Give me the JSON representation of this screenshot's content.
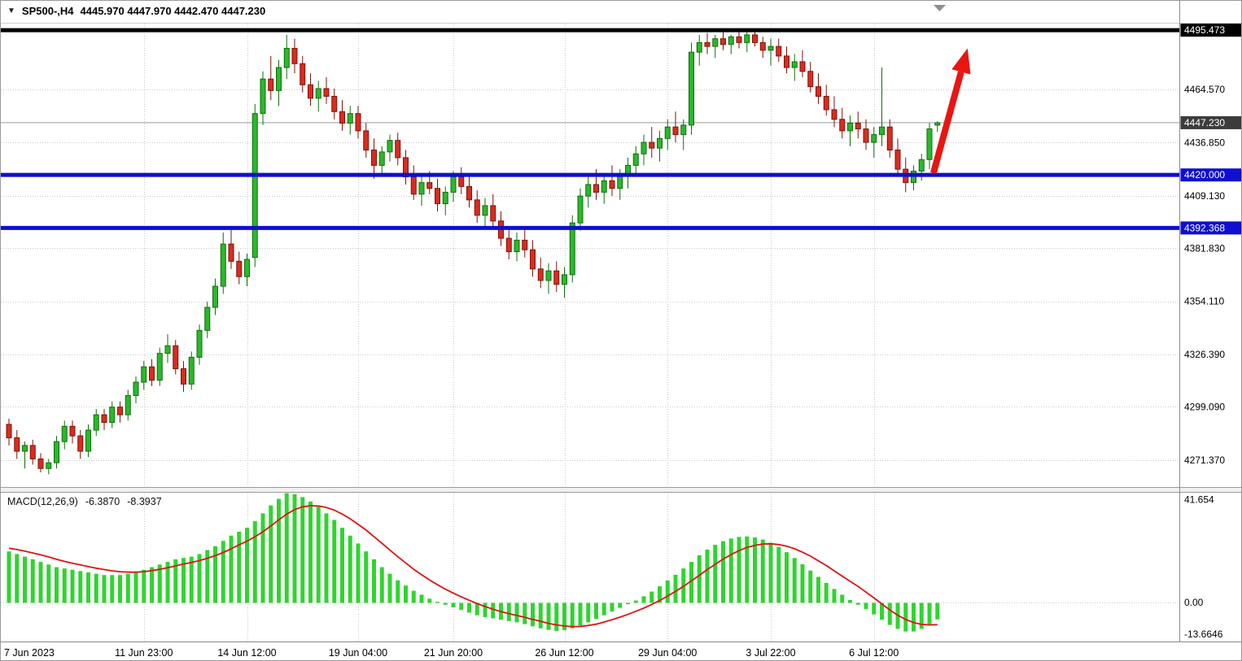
{
  "window": {
    "title": {
      "symbol": "SP500-,H4",
      "ohlc": "4445.970 4447.970 4442.470 4447.230"
    }
  },
  "colors": {
    "bull_fill": "#2bb82b",
    "bull_stroke": "#0e6f0e",
    "bear_fill": "#d92c20",
    "bear_stroke": "#7e120a",
    "macd_bar": "#2ed52e",
    "signal_line": "#e01311",
    "current_price_line": "#9a9a9a",
    "current_badge_bg": "#3c3c3c",
    "level_blue": "#0f0fd0",
    "level_black": "#000000",
    "grid": "#c9c9c9",
    "arrow": "#ea1510",
    "axis_border": "#8a8a8a"
  },
  "chart_data": {
    "type": "candlestick",
    "symbol": "SP500-",
    "timeframe": "H4",
    "price_range": [
      4256.5,
      4498.9
    ],
    "current_price": 4447.23,
    "candles": [
      [
        4290,
        4293,
        4279,
        4283
      ],
      [
        4283,
        4287,
        4272,
        4276
      ],
      [
        4276,
        4281,
        4267,
        4279
      ],
      [
        4279,
        4282,
        4269,
        4272
      ],
      [
        4272,
        4275,
        4265,
        4267
      ],
      [
        4267,
        4272,
        4264,
        4270
      ],
      [
        4270,
        4284,
        4267,
        4281
      ],
      [
        4281,
        4292,
        4277,
        4289
      ],
      [
        4289,
        4292,
        4280,
        4284
      ],
      [
        4284,
        4287,
        4272,
        4276
      ],
      [
        4276,
        4290,
        4273,
        4287
      ],
      [
        4287,
        4298,
        4284,
        4295
      ],
      [
        4295,
        4298,
        4287,
        4291
      ],
      [
        4291,
        4302,
        4288,
        4299
      ],
      [
        4299,
        4302,
        4291,
        4295
      ],
      [
        4295,
        4308,
        4292,
        4305
      ],
      [
        4305,
        4315,
        4301,
        4312
      ],
      [
        4312,
        4323,
        4308,
        4320
      ],
      [
        4320,
        4324,
        4310,
        4313
      ],
      [
        4313,
        4330,
        4310,
        4327
      ],
      [
        4327,
        4337,
        4322,
        4331
      ],
      [
        4331,
        4334,
        4316,
        4319
      ],
      [
        4319,
        4323,
        4307,
        4311
      ],
      [
        4311,
        4328,
        4308,
        4325
      ],
      [
        4325,
        4342,
        4321,
        4339
      ],
      [
        4339,
        4354,
        4335,
        4351
      ],
      [
        4351,
        4366,
        4347,
        4362
      ],
      [
        4362,
        4390,
        4358,
        4384
      ],
      [
        4384,
        4392,
        4371,
        4375
      ],
      [
        4375,
        4380,
        4363,
        4367
      ],
      [
        4367,
        4379,
        4362,
        4376
      ],
      [
        4377,
        4457,
        4372,
        4452
      ],
      [
        4452,
        4474,
        4446,
        4470
      ],
      [
        4470,
        4482,
        4459,
        4464
      ],
      [
        4464,
        4480,
        4456,
        4476
      ],
      [
        4476,
        4493,
        4470,
        4486
      ],
      [
        4486,
        4491,
        4473,
        4478
      ],
      [
        4478,
        4482,
        4463,
        4467
      ],
      [
        4467,
        4473,
        4456,
        4460
      ],
      [
        4460,
        4469,
        4453,
        4465
      ],
      [
        4465,
        4471,
        4457,
        4461
      ],
      [
        4461,
        4465,
        4449,
        4453
      ],
      [
        4453,
        4459,
        4443,
        4447
      ],
      [
        4447,
        4456,
        4441,
        4452
      ],
      [
        4452,
        4456,
        4439,
        4443
      ],
      [
        4443,
        4447,
        4429,
        4433
      ],
      [
        4433,
        4439,
        4418,
        4425
      ],
      [
        4425,
        4435,
        4421,
        4432
      ],
      [
        4432,
        4441,
        4427,
        4438
      ],
      [
        4438,
        4442,
        4425,
        4429
      ],
      [
        4429,
        4433,
        4415,
        4419
      ],
      [
        4419,
        4425,
        4407,
        4410
      ],
      [
        4410,
        4419,
        4404,
        4416
      ],
      [
        4416,
        4422,
        4410,
        4413
      ],
      [
        4413,
        4418,
        4401,
        4405
      ],
      [
        4405,
        4414,
        4399,
        4411
      ],
      [
        4411,
        4422,
        4406,
        4419
      ],
      [
        4419,
        4424,
        4410,
        4414
      ],
      [
        4414,
        4420,
        4403,
        4407
      ],
      [
        4407,
        4412,
        4395,
        4399
      ],
      [
        4399,
        4408,
        4393,
        4404
      ],
      [
        4404,
        4410,
        4393,
        4396
      ],
      [
        4396,
        4401,
        4383,
        4387
      ],
      [
        4387,
        4393,
        4376,
        4380
      ],
      [
        4380,
        4390,
        4375,
        4386
      ],
      [
        4386,
        4392,
        4377,
        4381
      ],
      [
        4381,
        4386,
        4367,
        4371
      ],
      [
        4371,
        4377,
        4361,
        4365
      ],
      [
        4365,
        4374,
        4358,
        4370
      ],
      [
        4370,
        4375,
        4359,
        4363
      ],
      [
        4363,
        4372,
        4356,
        4368
      ],
      [
        4368,
        4399,
        4364,
        4395
      ],
      [
        4395,
        4413,
        4391,
        4409
      ],
      [
        4409,
        4419,
        4403,
        4415
      ],
      [
        4415,
        4423,
        4407,
        4411
      ],
      [
        4411,
        4421,
        4405,
        4417
      ],
      [
        4417,
        4425,
        4409,
        4413
      ],
      [
        4413,
        4423,
        4407,
        4420
      ],
      [
        4420,
        4429,
        4413,
        4425
      ],
      [
        4425,
        4435,
        4419,
        4431
      ],
      [
        4431,
        4441,
        4425,
        4437
      ],
      [
        4437,
        4445,
        4429,
        4434
      ],
      [
        4434,
        4443,
        4427,
        4439
      ],
      [
        4439,
        4449,
        4433,
        4445
      ],
      [
        4445,
        4453,
        4437,
        4441
      ],
      [
        4441,
        4449,
        4433,
        4446
      ],
      [
        4446,
        4489,
        4441,
        4484
      ],
      [
        4484,
        4493,
        4477,
        4489
      ],
      [
        4489,
        4494,
        4483,
        4487
      ],
      [
        4487,
        4493,
        4481,
        4491
      ],
      [
        4491,
        4495,
        4485,
        4488
      ],
      [
        4488,
        4493,
        4483,
        4492
      ],
      [
        4492,
        4495,
        4486,
        4489
      ],
      [
        4489,
        4495,
        4484,
        4493
      ],
      [
        4493,
        4495,
        4487,
        4489
      ],
      [
        4489,
        4492,
        4481,
        4485
      ],
      [
        4485,
        4491,
        4477,
        4487
      ],
      [
        4487,
        4491,
        4479,
        4482
      ],
      [
        4482,
        4487,
        4473,
        4476
      ],
      [
        4476,
        4483,
        4469,
        4479
      ],
      [
        4479,
        4485,
        4471,
        4474
      ],
      [
        4474,
        4479,
        4463,
        4466
      ],
      [
        4466,
        4473,
        4457,
        4461
      ],
      [
        4461,
        4467,
        4451,
        4454
      ],
      [
        4454,
        4461,
        4445,
        4449
      ],
      [
        4449,
        4455,
        4439,
        4443
      ],
      [
        4443,
        4451,
        4435,
        4447
      ],
      [
        4447,
        4453,
        4439,
        4444
      ],
      [
        4444,
        4449,
        4433,
        4437
      ],
      [
        4437,
        4445,
        4429,
        4441
      ],
      [
        4441,
        4476,
        4435,
        4445
      ],
      [
        4445,
        4449,
        4429,
        4433
      ],
      [
        4433,
        4439,
        4419,
        4423
      ],
      [
        4423,
        4429,
        4411,
        4416
      ],
      [
        4416,
        4425,
        4412,
        4422
      ],
      [
        4422,
        4431,
        4417,
        4428
      ],
      [
        4428,
        4447,
        4423,
        4444
      ],
      [
        4445.97,
        4447.97,
        4442.47,
        4447.23
      ]
    ],
    "price_axis": {
      "ticks": [
        {
          "v": 4464.57,
          "label": "4464.570"
        },
        {
          "v": 4436.85,
          "label": "4436.850"
        },
        {
          "v": 4409.13,
          "label": "4409.130"
        },
        {
          "v": 4381.83,
          "label": "4381.830"
        },
        {
          "v": 4354.11,
          "label": "4354.110"
        },
        {
          "v": 4326.39,
          "label": "4326.390"
        },
        {
          "v": 4299.09,
          "label": "4299.090"
        },
        {
          "v": 4271.37,
          "label": "4271.370"
        }
      ],
      "badges": [
        {
          "v": 4495.473,
          "label": "4495.473",
          "bg": "#000000"
        },
        {
          "v": 4447.23,
          "label": "4447.230",
          "bg": "#3c3c3c"
        },
        {
          "v": 4420.0,
          "label": "4420.000",
          "bg": "#0f0fd0"
        },
        {
          "v": 4392.368,
          "label": "4392.368",
          "bg": "#0f0fd0"
        }
      ]
    },
    "levels": [
      {
        "v": 4495.473,
        "color": "#000000",
        "name": "resistance-line-4495"
      },
      {
        "v": 4420.0,
        "color": "#0f0fd0",
        "name": "support-line-4420"
      },
      {
        "v": 4392.368,
        "color": "#0f0fd0",
        "name": "support-line-4392"
      }
    ],
    "time_axis": [
      {
        "label": "7 Jun 2023",
        "i": 0,
        "grid": false
      },
      {
        "label": "11 Jun 23:00",
        "i": 17
      },
      {
        "label": "14 Jun 12:00",
        "i": 30
      },
      {
        "label": "19 Jun 04:00",
        "i": 44
      },
      {
        "label": "21 Jun 20:00",
        "i": 56
      },
      {
        "label": "26 Jun 12:00",
        "i": 70
      },
      {
        "label": "29 Jun 04:00",
        "i": 83
      },
      {
        "label": "3 Jul 22:00",
        "i": 96
      },
      {
        "label": "6 Jul 12:00",
        "i": 109
      }
    ],
    "macd": {
      "title": "MACD(12,26,9)",
      "macd_value_label": "-6.3870",
      "signal_value_label": "-8.3937",
      "range": [
        -14.8,
        42
      ],
      "ticks": [
        {
          "v": 41.654,
          "label": "41.654"
        },
        {
          "v": 0,
          "label": "0.00"
        },
        {
          "v": -13.6646,
          "label": "-13.6646"
        }
      ],
      "histogram": [
        19.5,
        18.5,
        17.5,
        16.5,
        15.5,
        14.5,
        13.5,
        13,
        12.5,
        12,
        11.5,
        11,
        10.5,
        10.5,
        10.5,
        11,
        11.5,
        12.5,
        13.5,
        14.5,
        15.5,
        16.5,
        17,
        17.5,
        18.5,
        20,
        21.5,
        23.5,
        25.5,
        27,
        28.5,
        31,
        34,
        37,
        39.5,
        41.654,
        41.3,
        40.2,
        38.5,
        36.5,
        34,
        31.5,
        28.5,
        25.5,
        22.5,
        19.5,
        16.5,
        13.5,
        11,
        8.5,
        6.5,
        4.5,
        3,
        1.5,
        0.3,
        -0.8,
        -1.8,
        -2.8,
        -3.8,
        -4.8,
        -5.5,
        -6,
        -6.5,
        -7,
        -7.5,
        -8.2,
        -9,
        -9.8,
        -10.4,
        -10.8,
        -10.5,
        -9.8,
        -8.8,
        -7.5,
        -6.2,
        -4.8,
        -3.4,
        -2,
        -0.6,
        0.8,
        2.4,
        4.2,
        6.2,
        8.4,
        10.6,
        13,
        15.5,
        18,
        20.2,
        22,
        23.4,
        24.4,
        25,
        25.2,
        24.8,
        24,
        22.8,
        21.2,
        19.2,
        17,
        14.6,
        12.2,
        9.8,
        7.5,
        5.2,
        3,
        1,
        -0.8,
        -2.5,
        -4.5,
        -6.5,
        -8.5,
        -10,
        -11,
        -11,
        -10,
        -8.2,
        -6.387
      ],
      "signal": [
        20.7,
        20.2,
        19.6,
        18.9,
        18.2,
        17.4,
        16.5,
        15.7,
        15.0,
        14.4,
        13.7,
        13.1,
        12.6,
        12.1,
        11.8,
        11.6,
        11.6,
        11.8,
        12.2,
        12.7,
        13.3,
        14.0,
        14.7,
        15.3,
        16.0,
        16.9,
        17.9,
        19.1,
        20.5,
        22.0,
        23.4,
        25.1,
        27.0,
        29.2,
        31.5,
        33.7,
        35.4,
        36.5,
        36.9,
        36.8,
        36.2,
        35.2,
        33.7,
        31.9,
        29.8,
        27.6,
        25.1,
        22.6,
        20.0,
        17.5,
        15.1,
        12.7,
        10.6,
        8.6,
        6.8,
        5.1,
        3.6,
        2.2,
        0.9,
        -0.4,
        -1.5,
        -2.5,
        -3.4,
        -4.2,
        -4.9,
        -5.6,
        -6.4,
        -7.1,
        -7.9,
        -8.5,
        -8.9,
        -9.1,
        -9.1,
        -8.7,
        -8.2,
        -7.4,
        -6.5,
        -5.5,
        -4.5,
        -3.3,
        -2.1,
        -0.7,
        0.8,
        2.5,
        4.3,
        6.2,
        8.3,
        10.4,
        12.6,
        14.6,
        16.6,
        18.3,
        19.8,
        21.0,
        21.8,
        22.3,
        22.4,
        22.1,
        21.5,
        20.5,
        19.2,
        17.7,
        15.9,
        14.1,
        12.1,
        10.1,
        8.1,
        6.2,
        4.0,
        1.8,
        -0.5,
        -2.8,
        -4.8,
        -6.4,
        -7.6,
        -8.3,
        -8.5,
        -8.3937
      ]
    },
    "annotations": {
      "arrow": {
        "from_i": 116.5,
        "from_price": 4421,
        "to_i": 120.8,
        "to_price": 4486
      }
    }
  }
}
